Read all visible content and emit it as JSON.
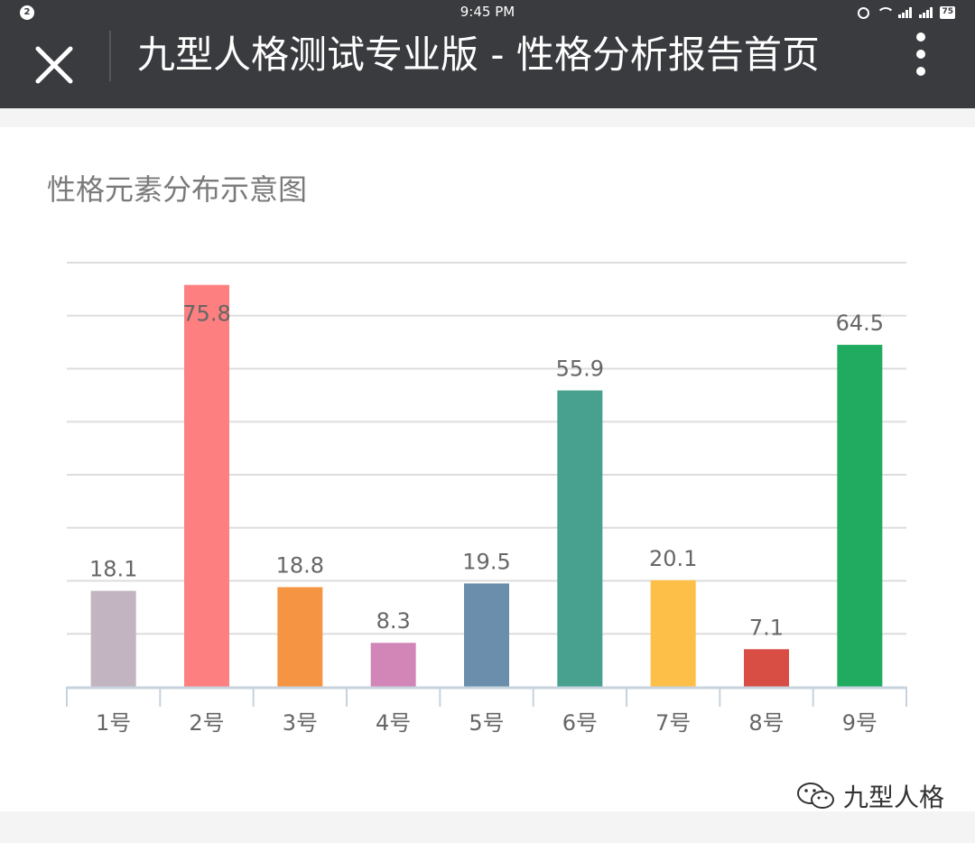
{
  "status_bar": {
    "notification_count": "2",
    "time": "9:45 PM",
    "battery": "75",
    "icons": [
      "alarm-icon",
      "wifi-icon",
      "signal-icon",
      "signal-icon",
      "battery-icon"
    ]
  },
  "header": {
    "title": "九型人格测试专业版 - 性格分析报告首页",
    "close_icon": "close-icon",
    "more_icon": "more-vertical-icon"
  },
  "card": {
    "title": "性格元素分布示意图"
  },
  "chart_data": {
    "type": "bar",
    "categories": [
      "1号",
      "2号",
      "3号",
      "4号",
      "5号",
      "6号",
      "7号",
      "8号",
      "9号"
    ],
    "values": [
      18.1,
      75.8,
      18.8,
      8.3,
      19.5,
      55.9,
      20.1,
      7.1,
      64.5
    ],
    "labels": [
      "18.1",
      "75.8",
      "18.8",
      "8.3",
      "19.5",
      "55.9",
      "20.1",
      "7.1",
      "64.5"
    ],
    "colors": [
      "#c2b4c0",
      "#fd7f7f",
      "#f59443",
      "#d285b7",
      "#6a8eab",
      "#48a18f",
      "#fdbf47",
      "#d84e44",
      "#20ab60"
    ],
    "ylim": [
      0,
      80
    ],
    "grid": true,
    "legend": "none"
  },
  "watermark": {
    "text": "九型人格",
    "icon": "wechat-icon"
  }
}
